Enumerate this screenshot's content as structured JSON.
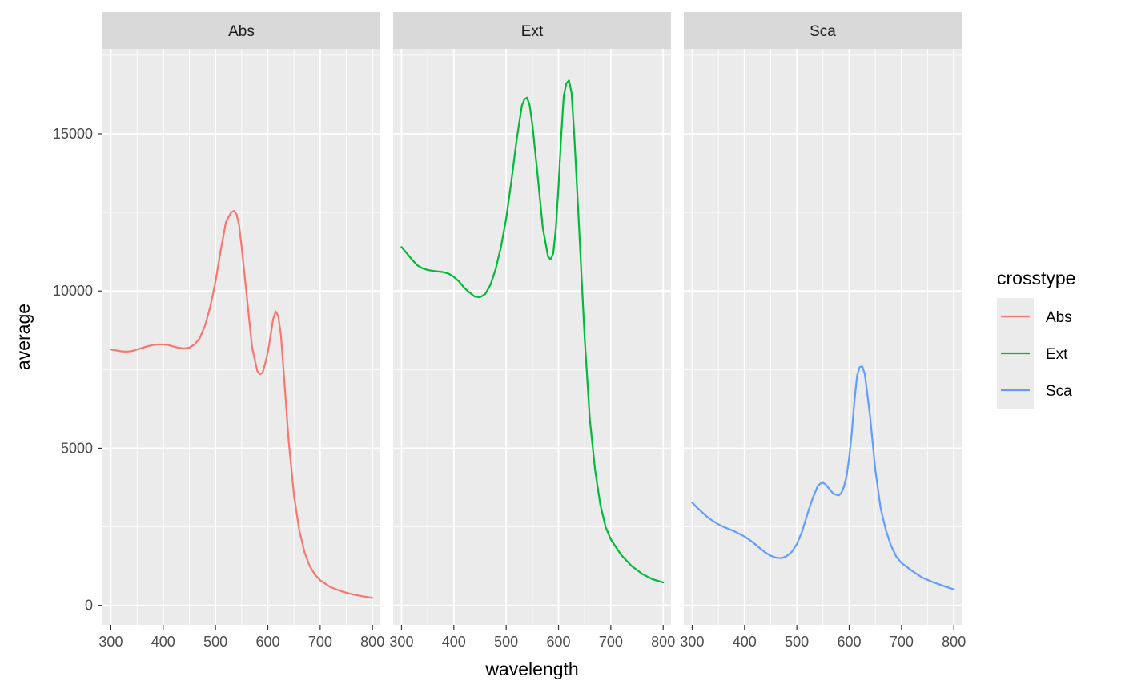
{
  "chart_data": {
    "type": "line",
    "facet_by": "crosstype",
    "xlabel": "wavelength",
    "ylabel": "average",
    "xlim": [
      284,
      815
    ],
    "ylim": [
      -620,
      17700
    ],
    "x_ticks": [
      300,
      400,
      500,
      600,
      700,
      800
    ],
    "y_ticks": [
      0,
      5000,
      10000,
      15000
    ],
    "grid": true,
    "legend": {
      "title": "crosstype",
      "position": "right",
      "entries": [
        "Abs",
        "Ext",
        "Sca"
      ]
    },
    "facets": [
      {
        "label": "Abs",
        "color": "#F8766D",
        "x": [
          300,
          310,
          320,
          330,
          340,
          350,
          360,
          370,
          380,
          390,
          400,
          410,
          420,
          430,
          440,
          450,
          460,
          470,
          480,
          490,
          500,
          510,
          520,
          530,
          535,
          540,
          545,
          550,
          560,
          570,
          580,
          585,
          590,
          595,
          600,
          605,
          610,
          615,
          620,
          625,
          630,
          640,
          650,
          660,
          670,
          680,
          690,
          700,
          720,
          740,
          760,
          780,
          800
        ],
        "y": [
          8140,
          8110,
          8080,
          8070,
          8090,
          8140,
          8190,
          8240,
          8280,
          8300,
          8300,
          8280,
          8230,
          8190,
          8170,
          8200,
          8300,
          8500,
          8900,
          9500,
          10300,
          11300,
          12200,
          12500,
          12550,
          12450,
          12100,
          11400,
          9800,
          8200,
          7450,
          7350,
          7400,
          7700,
          8050,
          8550,
          9100,
          9350,
          9200,
          8600,
          7500,
          5200,
          3500,
          2400,
          1700,
          1250,
          980,
          800,
          580,
          450,
          360,
          290,
          240
        ]
      },
      {
        "label": "Ext",
        "color": "#00BA38",
        "x": [
          300,
          310,
          320,
          330,
          340,
          350,
          360,
          370,
          380,
          390,
          400,
          410,
          420,
          430,
          440,
          450,
          460,
          470,
          480,
          490,
          500,
          510,
          520,
          530,
          535,
          540,
          545,
          550,
          560,
          570,
          580,
          585,
          590,
          595,
          600,
          605,
          610,
          615,
          620,
          625,
          630,
          640,
          650,
          660,
          670,
          680,
          690,
          700,
          720,
          740,
          760,
          780,
          800
        ],
        "y": [
          11400,
          11200,
          11000,
          10820,
          10720,
          10670,
          10640,
          10620,
          10600,
          10550,
          10450,
          10300,
          10100,
          9950,
          9820,
          9800,
          9900,
          10200,
          10700,
          11400,
          12300,
          13500,
          14800,
          15900,
          16100,
          16150,
          15900,
          15300,
          13700,
          12000,
          11100,
          11000,
          11200,
          12000,
          13300,
          14900,
          16200,
          16600,
          16700,
          16300,
          15000,
          11800,
          8500,
          5900,
          4300,
          3200,
          2500,
          2100,
          1600,
          1250,
          1000,
          830,
          730
        ]
      },
      {
        "label": "Sca",
        "color": "#619CFF",
        "x": [
          300,
          310,
          320,
          330,
          340,
          350,
          360,
          370,
          380,
          390,
          400,
          410,
          420,
          430,
          440,
          450,
          460,
          470,
          480,
          490,
          500,
          510,
          520,
          530,
          540,
          545,
          550,
          555,
          560,
          570,
          580,
          585,
          590,
          595,
          600,
          605,
          610,
          615,
          620,
          625,
          630,
          640,
          650,
          660,
          670,
          680,
          690,
          700,
          720,
          740,
          760,
          780,
          800
        ],
        "y": [
          3270,
          3100,
          2950,
          2800,
          2680,
          2580,
          2500,
          2430,
          2360,
          2280,
          2190,
          2080,
          1950,
          1810,
          1680,
          1580,
          1520,
          1500,
          1560,
          1700,
          1950,
          2350,
          2900,
          3400,
          3800,
          3880,
          3900,
          3850,
          3750,
          3550,
          3500,
          3580,
          3780,
          4100,
          4700,
          5500,
          6500,
          7300,
          7580,
          7600,
          7350,
          6000,
          4300,
          3100,
          2400,
          1900,
          1550,
          1350,
          1100,
          880,
          740,
          620,
          510
        ]
      }
    ]
  }
}
